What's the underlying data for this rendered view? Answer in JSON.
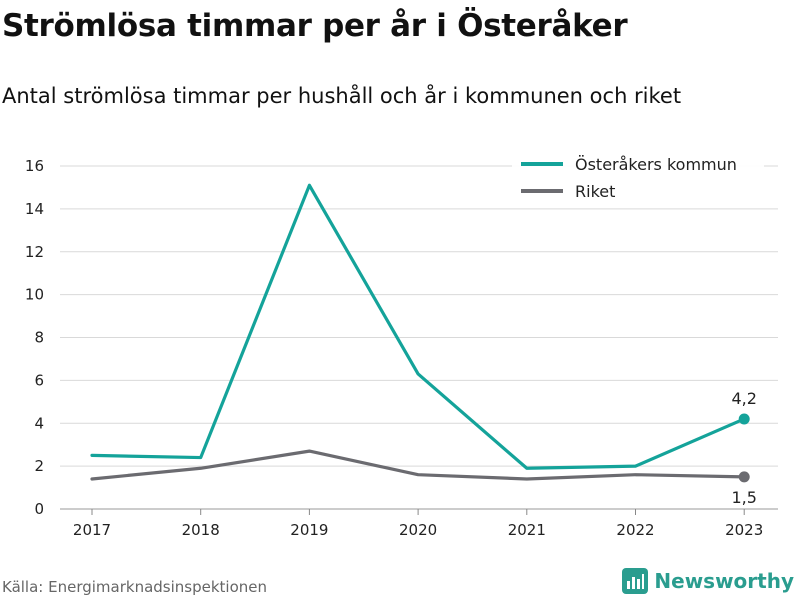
{
  "header": {
    "title": "Strömlösa timmar per år i Österåker",
    "subtitle": "Antal strömlösa timmar per hushåll och år i kommunen och riket"
  },
  "footer": {
    "source": "Källa: Energimarknadsinspektionen",
    "brand": "Newsworthy",
    "brand_icon": "bar-chart-icon"
  },
  "colors": {
    "osteraker": "#14a39a",
    "riket": "#6b6b70",
    "grid": "#d9d9d9",
    "brand": "#2a9d8f"
  },
  "chart_data": {
    "type": "line",
    "title": "Strömlösa timmar per år i Österåker",
    "subtitle": "Antal strömlösa timmar per hushåll och år i kommunen och riket",
    "x": [
      "2017",
      "2018",
      "2019",
      "2020",
      "2021",
      "2022",
      "2023"
    ],
    "ylim": [
      0,
      16
    ],
    "yticks": [
      0,
      2,
      4,
      6,
      8,
      10,
      12,
      14,
      16
    ],
    "grid": true,
    "legend_position": "top-right",
    "series": [
      {
        "name": "Österåkers kommun",
        "color": "#14a39a",
        "values": [
          2.5,
          2.4,
          15.1,
          6.3,
          1.9,
          2.0,
          4.2
        ],
        "end_label": "4,2"
      },
      {
        "name": "Riket",
        "color": "#6b6b70",
        "values": [
          1.4,
          1.9,
          2.7,
          1.6,
          1.4,
          1.6,
          1.5
        ],
        "end_label": "1,5"
      }
    ]
  }
}
